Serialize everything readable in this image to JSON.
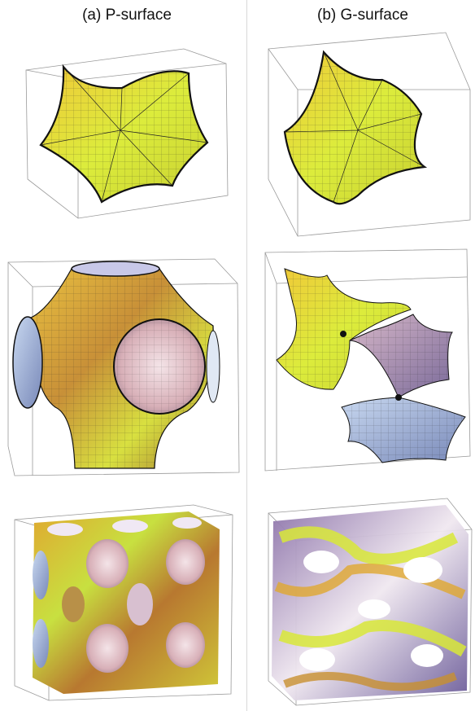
{
  "columns": [
    {
      "title": "(a) P-surface"
    },
    {
      "title": "(b) G-surface"
    }
  ],
  "colors": {
    "yellow": "#d8e838",
    "orange": "#d89a3c",
    "brown": "#8a6430",
    "lilac": "#c8a8c8",
    "blue": "#a8c0e0",
    "frame": "#9a9a9a",
    "mesh": "#1a1a1a"
  }
}
